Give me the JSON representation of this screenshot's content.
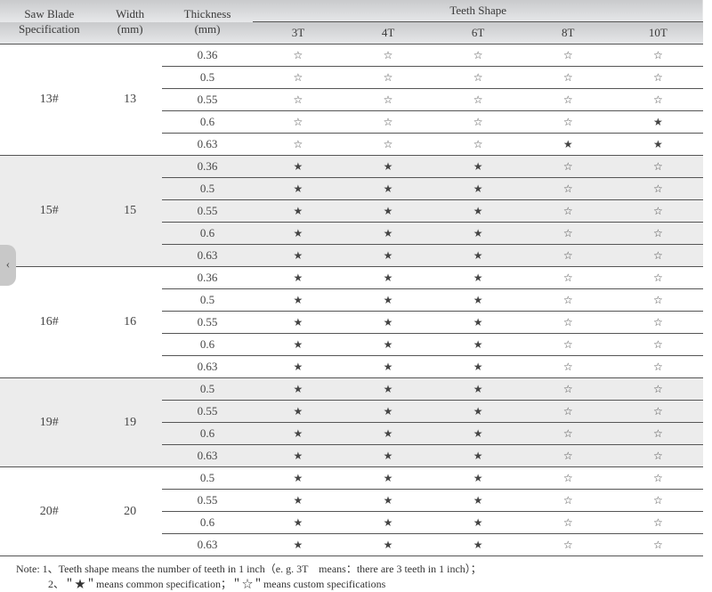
{
  "header": {
    "spec_line1": "Saw Blade",
    "spec_line2": "Specification",
    "width_line1": "Width",
    "width_line2": "(mm)",
    "thick_line1": "Thickness",
    "thick_line2": "(mm)",
    "teeth_shape": "Teeth Shape",
    "teeth_cols": [
      "3T",
      "4T",
      "6T",
      "8T",
      "10T"
    ]
  },
  "symbols": {
    "common": "★",
    "custom": "☆"
  },
  "groups": [
    {
      "spec": "13#",
      "width": "13",
      "shade": "a",
      "rows": [
        {
          "thickness": "0.36",
          "marks": [
            "custom",
            "custom",
            "custom",
            "custom",
            "custom"
          ]
        },
        {
          "thickness": "0.5",
          "marks": [
            "custom",
            "custom",
            "custom",
            "custom",
            "custom"
          ]
        },
        {
          "thickness": "0.55",
          "marks": [
            "custom",
            "custom",
            "custom",
            "custom",
            "custom"
          ]
        },
        {
          "thickness": "0.6",
          "marks": [
            "custom",
            "custom",
            "custom",
            "custom",
            "common"
          ]
        },
        {
          "thickness": "0.63",
          "marks": [
            "custom",
            "custom",
            "custom",
            "common",
            "common"
          ]
        }
      ]
    },
    {
      "spec": "15#",
      "width": "15",
      "shade": "b",
      "rows": [
        {
          "thickness": "0.36",
          "marks": [
            "common",
            "common",
            "common",
            "custom",
            "custom"
          ]
        },
        {
          "thickness": "0.5",
          "marks": [
            "common",
            "common",
            "common",
            "custom",
            "custom"
          ]
        },
        {
          "thickness": "0.55",
          "marks": [
            "common",
            "common",
            "common",
            "custom",
            "custom"
          ]
        },
        {
          "thickness": "0.6",
          "marks": [
            "common",
            "common",
            "common",
            "custom",
            "custom"
          ]
        },
        {
          "thickness": "0.63",
          "marks": [
            "common",
            "common",
            "common",
            "custom",
            "custom"
          ]
        }
      ]
    },
    {
      "spec": "16#",
      "width": "16",
      "shade": "a",
      "rows": [
        {
          "thickness": "0.36",
          "marks": [
            "common",
            "common",
            "common",
            "custom",
            "custom"
          ]
        },
        {
          "thickness": "0.5",
          "marks": [
            "common",
            "common",
            "common",
            "custom",
            "custom"
          ]
        },
        {
          "thickness": "0.55",
          "marks": [
            "common",
            "common",
            "common",
            "custom",
            "custom"
          ]
        },
        {
          "thickness": "0.6",
          "marks": [
            "common",
            "common",
            "common",
            "custom",
            "custom"
          ]
        },
        {
          "thickness": "0.63",
          "marks": [
            "common",
            "common",
            "common",
            "custom",
            "custom"
          ]
        }
      ]
    },
    {
      "spec": "19#",
      "width": "19",
      "shade": "b",
      "rows": [
        {
          "thickness": "0.5",
          "marks": [
            "common",
            "common",
            "common",
            "custom",
            "custom"
          ]
        },
        {
          "thickness": "0.55",
          "marks": [
            "common",
            "common",
            "common",
            "custom",
            "custom"
          ]
        },
        {
          "thickness": "0.6",
          "marks": [
            "common",
            "common",
            "common",
            "custom",
            "custom"
          ]
        },
        {
          "thickness": "0.63",
          "marks": [
            "common",
            "common",
            "common",
            "custom",
            "custom"
          ]
        }
      ]
    },
    {
      "spec": "20#",
      "width": "20",
      "shade": "a",
      "rows": [
        {
          "thickness": "0.5",
          "marks": [
            "common",
            "common",
            "common",
            "custom",
            "custom"
          ]
        },
        {
          "thickness": "0.55",
          "marks": [
            "common",
            "common",
            "common",
            "custom",
            "custom"
          ]
        },
        {
          "thickness": "0.6",
          "marks": [
            "common",
            "common",
            "common",
            "custom",
            "custom"
          ]
        },
        {
          "thickness": "0.63",
          "marks": [
            "common",
            "common",
            "common",
            "custom",
            "custom"
          ]
        }
      ]
    }
  ],
  "note_lines": [
    "Note: 1、Teeth shape means the number of teeth in 1 inch（e. g.  3T　means：there are 3 teeth in 1 inch）；",
    "　　　2、＂★＂means common specification；＂☆＂means custom specifications"
  ],
  "side_tab": "‹"
}
